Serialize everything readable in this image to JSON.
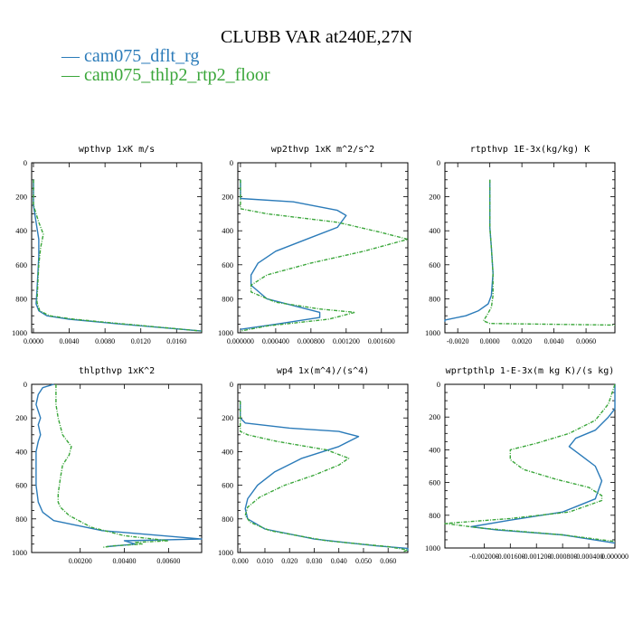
{
  "figure": {
    "title": "CLUBB VAR at240E,27N",
    "legend": [
      {
        "label": "— cam075_dflt_rg",
        "color": "#2b7bb9"
      },
      {
        "label": "— cam075_thlp2_rtp2_floor",
        "color": "#3aa63a"
      }
    ]
  },
  "chart_data": [
    {
      "type": "line",
      "title": "wpthvp  1xK m/s",
      "xlim": [
        -0.0002,
        0.0188
      ],
      "ylim": [
        1000,
        0
      ],
      "xticks": [
        "0.0000",
        "0.0040",
        "0.0080",
        "0.0120",
        "0.0160"
      ],
      "xtick_values": [
        0.0,
        0.004,
        0.008,
        0.012,
        0.016
      ],
      "yticks": [
        "0",
        "200",
        "400",
        "600",
        "800",
        "1000"
      ],
      "ytick_values": [
        0,
        200,
        400,
        600,
        800,
        1000
      ],
      "series": [
        {
          "name": "cam075_dflt_rg",
          "color": "#2b7bb9",
          "dashed": false,
          "x": [
            0.0,
            0.0,
            0.0003,
            0.0006,
            0.0006,
            0.0005,
            0.0004,
            0.0003,
            0.0006,
            0.0015,
            0.004,
            0.009,
            0.0188
          ],
          "y": [
            100,
            250,
            350,
            450,
            550,
            650,
            750,
            830,
            870,
            900,
            920,
            945,
            990
          ]
        },
        {
          "name": "cam075_thlp2_rtp2_floor",
          "color": "#3aa63a",
          "dashed": true,
          "x": [
            0.0,
            0.0,
            0.0006,
            0.0011,
            0.0008,
            0.0006,
            0.0005,
            0.0004,
            0.0007,
            0.0018,
            0.0045,
            0.0095,
            0.0188
          ],
          "y": [
            100,
            250,
            350,
            420,
            500,
            600,
            700,
            820,
            870,
            900,
            920,
            945,
            990
          ]
        }
      ]
    },
    {
      "type": "line",
      "title": "wp2thvp  1xK m^2/s^2",
      "xlim": [
        -3e-05,
        0.0019
      ],
      "ylim": [
        1000,
        0
      ],
      "xticks": [
        "0.000000",
        "0.000400",
        "0.000800",
        "0.001200",
        "0.001600"
      ],
      "xtick_values": [
        0.0,
        0.0004,
        0.0008,
        0.0012,
        0.0016
      ],
      "yticks": [
        "0",
        "200",
        "400",
        "600",
        "800",
        "1000"
      ],
      "ytick_values": [
        0,
        200,
        400,
        600,
        800,
        1000
      ],
      "series": [
        {
          "name": "cam075_dflt_rg",
          "color": "#2b7bb9",
          "dashed": false,
          "x": [
            0.0,
            0.0,
            0.0006,
            0.0011,
            0.0012,
            0.0011,
            0.0008,
            0.0004,
            0.0002,
            0.00012,
            0.00012,
            0.0003,
            0.0006,
            0.0009,
            0.0009,
            0.0004,
            0.0
          ],
          "y": [
            100,
            210,
            230,
            280,
            310,
            380,
            440,
            520,
            590,
            660,
            720,
            800,
            840,
            880,
            910,
            950,
            980
          ]
        },
        {
          "name": "cam075_thlp2_rtp2_floor",
          "color": "#3aa63a",
          "dashed": true,
          "x": [
            0.0,
            0.0,
            0.0003,
            0.0011,
            0.0016,
            0.0019,
            0.0014,
            0.0008,
            0.0003,
            0.00012,
            0.00012,
            0.0004,
            0.0009,
            0.0013,
            0.001,
            0.0003,
            0.0
          ],
          "y": [
            100,
            270,
            300,
            350,
            410,
            450,
            520,
            590,
            660,
            720,
            760,
            820,
            860,
            880,
            920,
            960,
            990
          ]
        }
      ]
    },
    {
      "type": "line",
      "title": "rtpthvp  1E-3x(kg/kg) K",
      "xlim": [
        -0.0028,
        0.0078
      ],
      "ylim": [
        1000,
        0
      ],
      "xticks": [
        "-0.0020",
        "0.0000",
        "0.0020",
        "0.0040",
        "0.0060"
      ],
      "xtick_values": [
        -0.002,
        0.0,
        0.002,
        0.004,
        0.006
      ],
      "yticks": [
        "0",
        "200",
        "400",
        "600",
        "800",
        "1000"
      ],
      "ytick_values": [
        0,
        200,
        400,
        600,
        800,
        1000
      ],
      "series": [
        {
          "name": "cam075_dflt_rg",
          "color": "#2b7bb9",
          "dashed": false,
          "x": [
            0.0,
            0.0,
            0.0,
            0.0001,
            0.0002,
            0.0001,
            -0.0001,
            -0.0007,
            -0.0015,
            -0.0028,
            -0.0028
          ],
          "y": [
            100,
            300,
            380,
            500,
            650,
            780,
            830,
            870,
            900,
            925,
            935
          ]
        },
        {
          "name": "cam075_thlp2_rtp2_floor",
          "color": "#3aa63a",
          "dashed": true,
          "x": [
            0.0,
            0.0,
            0.0,
            0.0001,
            0.0002,
            0.0002,
            0.0001,
            -0.0002,
            -0.0004,
            0.0,
            0.0078
          ],
          "y": [
            100,
            300,
            380,
            500,
            650,
            780,
            850,
            900,
            930,
            945,
            955
          ]
        }
      ]
    },
    {
      "type": "line",
      "title": "thlpthvp  1xK^2",
      "xlim": [
        -0.0002,
        0.0075
      ],
      "ylim": [
        1000,
        0
      ],
      "xticks": [
        "0.00200",
        "0.00400",
        "0.00600"
      ],
      "xtick_values": [
        0.002,
        0.004,
        0.006
      ],
      "yticks": [
        "0",
        "200",
        "400",
        "600",
        "800",
        "1000"
      ],
      "ytick_values": [
        0,
        200,
        400,
        600,
        800,
        1000
      ],
      "series": [
        {
          "name": "cam075_dflt_rg",
          "color": "#2b7bb9",
          "dashed": false,
          "x": [
            0.0008,
            0.0003,
            0.0001,
            0.0,
            0.0002,
            0.0001,
            0.0002,
            0.0001,
            0.0,
            0.0,
            0.0,
            0.0001,
            0.0003,
            0.0008,
            0.003,
            0.0075,
            0.004,
            0.0045,
            0.0032
          ],
          "y": [
            0,
            20,
            60,
            120,
            200,
            240,
            300,
            340,
            400,
            500,
            600,
            700,
            760,
            810,
            870,
            920,
            930,
            950,
            965
          ]
        },
        {
          "name": "cam075_thlp2_rtp2_floor",
          "color": "#3aa63a",
          "dashed": true,
          "x": [
            0.0009,
            0.0009,
            0.0009,
            0.001,
            0.0012,
            0.0016,
            0.0015,
            0.0012,
            0.0011,
            0.001,
            0.001,
            0.0011,
            0.0015,
            0.0025,
            0.004,
            0.006,
            0.0045,
            0.0048,
            0.0035,
            0.003
          ],
          "y": [
            0,
            50,
            120,
            200,
            300,
            370,
            420,
            480,
            560,
            650,
            700,
            730,
            780,
            850,
            900,
            930,
            940,
            950,
            960,
            970
          ]
        }
      ]
    },
    {
      "type": "line",
      "title": "wp4  1x(m^4)/(s^4)",
      "xlim": [
        -0.001,
        0.068
      ],
      "ylim": [
        1000,
        0
      ],
      "xticks": [
        "0.000",
        "0.010",
        "0.020",
        "0.030",
        "0.040",
        "0.050",
        "0.060"
      ],
      "xtick_values": [
        0.0,
        0.01,
        0.02,
        0.03,
        0.04,
        0.05,
        0.06
      ],
      "yticks": [
        "0",
        "200",
        "400",
        "600",
        "800",
        "1000"
      ],
      "ytick_values": [
        0,
        200,
        400,
        600,
        800,
        1000
      ],
      "series": [
        {
          "name": "cam075_dflt_rg",
          "color": "#2b7bb9",
          "dashed": false,
          "x": [
            0.0,
            0.0,
            0.002,
            0.02,
            0.04,
            0.048,
            0.04,
            0.025,
            0.014,
            0.007,
            0.003,
            0.002,
            0.003,
            0.01,
            0.03,
            0.055,
            0.068,
            0.068
          ],
          "y": [
            100,
            200,
            230,
            260,
            280,
            310,
            370,
            440,
            520,
            600,
            680,
            740,
            800,
            860,
            920,
            960,
            975,
            990
          ]
        },
        {
          "name": "cam075_thlp2_rtp2_floor",
          "color": "#3aa63a",
          "dashed": true,
          "x": [
            0.0,
            0.0,
            0.003,
            0.015,
            0.035,
            0.044,
            0.04,
            0.03,
            0.018,
            0.008,
            0.003,
            0.002,
            0.004,
            0.012,
            0.035,
            0.06,
            0.068,
            0.066
          ],
          "y": [
            100,
            280,
            300,
            340,
            390,
            440,
            480,
            540,
            600,
            670,
            730,
            780,
            820,
            870,
            930,
            965,
            985,
            995
          ]
        }
      ]
    },
    {
      "type": "line",
      "title": "wprtpthlp  1-E-3x(m kg K)/(s kg)",
      "xlim": [
        -0.0026,
        0.0
      ],
      "ylim": [
        1000,
        0
      ],
      "xticks": [
        "-0.002000",
        "-0.001600",
        "-0.001200",
        "-0.000800",
        "-0.000400",
        "0.000000"
      ],
      "xtick_values": [
        -0.002,
        -0.0016,
        -0.0012,
        -0.0008,
        -0.0004,
        0.0
      ],
      "yticks": [
        "0",
        "200",
        "400",
        "600",
        "800",
        "1000"
      ],
      "ytick_values": [
        0,
        200,
        400,
        600,
        800,
        1000
      ],
      "series": [
        {
          "name": "cam075_dflt_rg",
          "color": "#2b7bb9",
          "dashed": false,
          "x": [
            0.0,
            0.0,
            -0.0001,
            -0.0003,
            -0.0006,
            -0.0007,
            -0.0005,
            -0.0003,
            -0.0002,
            -0.0003,
            -0.0008,
            -0.0016,
            -0.0022,
            -0.0018,
            -0.0008,
            0.0
          ],
          "y": [
            0,
            150,
            200,
            280,
            330,
            380,
            440,
            500,
            590,
            700,
            780,
            830,
            870,
            890,
            920,
            970
          ]
        },
        {
          "name": "cam075_thlp2_rtp2_floor",
          "color": "#3aa63a",
          "dashed": true,
          "x": [
            0.0,
            -0.0001,
            -0.0003,
            -0.0007,
            -0.0012,
            -0.0016,
            -0.0016,
            -0.0014,
            -0.0009,
            -0.0004,
            -0.0002,
            -0.0002,
            -0.0007,
            -0.0016,
            -0.0026,
            -0.002,
            -0.0008,
            0.0
          ],
          "y": [
            0,
            120,
            220,
            300,
            360,
            400,
            460,
            520,
            580,
            630,
            680,
            710,
            780,
            820,
            850,
            880,
            920,
            960
          ]
        }
      ]
    }
  ]
}
